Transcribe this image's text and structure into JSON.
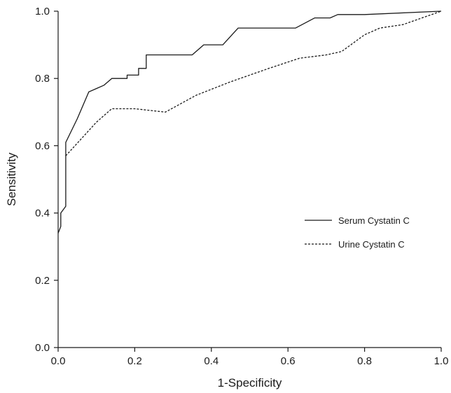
{
  "chart_data": {
    "type": "line",
    "title": "",
    "xlabel": "1-Specificity",
    "ylabel": "Sensitivity",
    "xlim": [
      0,
      1
    ],
    "ylim": [
      0,
      1
    ],
    "xticks": [
      "0.0",
      "0.2",
      "0.4",
      "0.6",
      "0.8",
      "1.0"
    ],
    "yticks": [
      "0.0",
      "0.2",
      "0.4",
      "0.6",
      "0.8",
      "1.0"
    ],
    "grid": false,
    "legend_position": "right-middle",
    "series": [
      {
        "name": "Serum Cystatin C",
        "line_style": "solid",
        "color": "#1a1a1a",
        "x": [
          0.0,
          0.007,
          0.007,
          0.02,
          0.02,
          0.05,
          0.08,
          0.1,
          0.12,
          0.13,
          0.14,
          0.14,
          0.18,
          0.18,
          0.21,
          0.21,
          0.23,
          0.23,
          0.29,
          0.35,
          0.38,
          0.43,
          0.47,
          0.56,
          0.62,
          0.67,
          0.71,
          0.73,
          0.8,
          1.0
        ],
        "y": [
          0.34,
          0.36,
          0.4,
          0.42,
          0.61,
          0.68,
          0.76,
          0.77,
          0.78,
          0.79,
          0.8,
          0.8,
          0.8,
          0.81,
          0.81,
          0.83,
          0.83,
          0.87,
          0.87,
          0.87,
          0.9,
          0.9,
          0.95,
          0.95,
          0.95,
          0.98,
          0.98,
          0.99,
          0.99,
          1.0
        ]
      },
      {
        "name": "Urine Cystatin C",
        "line_style": "dashed",
        "color": "#1a1a1a",
        "x": [
          0.02,
          0.06,
          0.1,
          0.14,
          0.2,
          0.28,
          0.36,
          0.45,
          0.55,
          0.63,
          0.7,
          0.74,
          0.8,
          0.84,
          0.9,
          1.0
        ],
        "y": [
          0.57,
          0.62,
          0.67,
          0.71,
          0.71,
          0.7,
          0.75,
          0.79,
          0.83,
          0.86,
          0.87,
          0.88,
          0.93,
          0.95,
          0.96,
          1.0
        ]
      }
    ]
  }
}
